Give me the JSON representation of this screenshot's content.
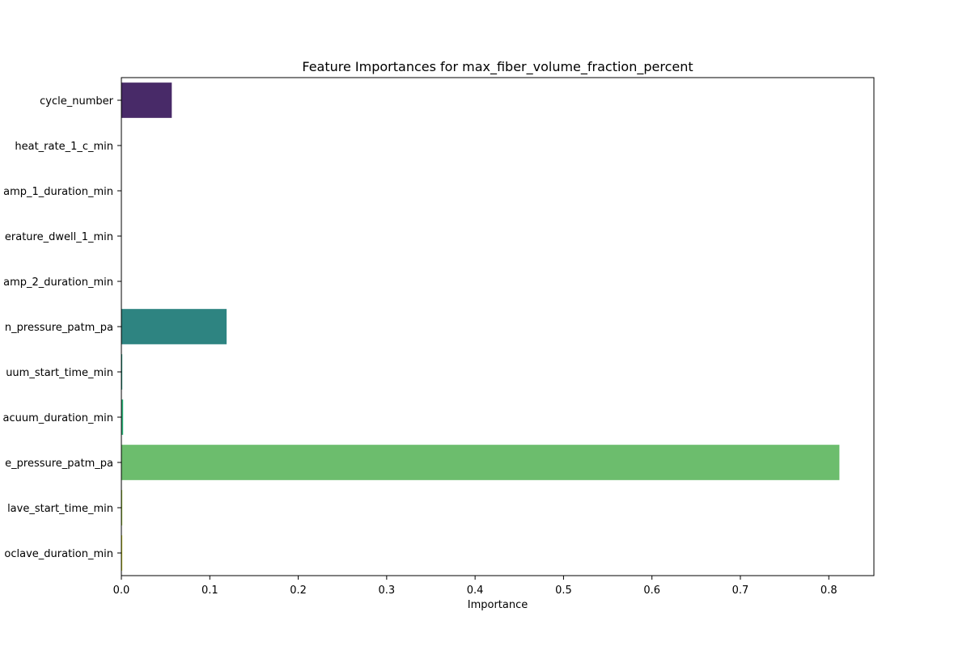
{
  "chart_data": {
    "type": "bar",
    "orientation": "horizontal",
    "title": "Feature Importances for max_fiber_volume_fraction_percent",
    "xlabel": "Importance",
    "ylabel": "",
    "xlim": [
      0.0,
      0.851
    ],
    "xticks": [
      "0.0",
      "0.1",
      "0.2",
      "0.3",
      "0.4",
      "0.5",
      "0.6",
      "0.7",
      "0.8"
    ],
    "grid": false,
    "categories": [
      "cycle_number",
      "heat_rate_1_c_min",
      "amp_1_duration_min",
      "erature_dwell_1_min",
      "amp_2_duration_min",
      "n_pressure_patm_pa",
      "uum_start_time_min",
      "acuum_duration_min",
      "e_pressure_patm_pa",
      "lave_start_time_min",
      "oclave_duration_min"
    ],
    "values": [
      0.057,
      0.0,
      0.0,
      0.0,
      0.0,
      0.119,
      0.001,
      0.002,
      0.812,
      0.001,
      0.001
    ],
    "colors": [
      "#482a68",
      "#433e85",
      "#38588c",
      "#2e6f8e",
      "#287c8e",
      "#2e8481",
      "#20a386",
      "#2fb47c",
      "#6cbd6d",
      "#a8d739",
      "#dde318"
    ]
  }
}
